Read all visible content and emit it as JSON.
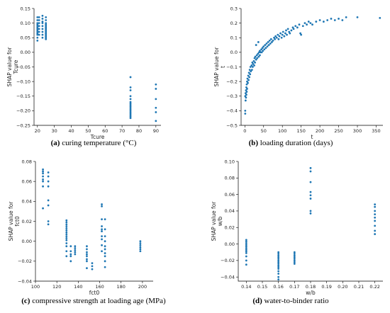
{
  "colors": {
    "point": "#1f77b4"
  },
  "chart_data": [
    {
      "id": "a",
      "type": "scatter",
      "caption_letter": "(a)",
      "caption_text": " curing temperature (°C)",
      "xlabel": "Tcure",
      "ylabel_lines": [
        "SHAP value for",
        "Tcure"
      ],
      "xlim": [
        18,
        93
      ],
      "ylim": [
        -0.25,
        0.15
      ],
      "xticks": [
        20,
        30,
        40,
        50,
        60,
        70,
        80,
        90
      ],
      "yticks": [
        -0.25,
        -0.2,
        -0.15,
        -0.1,
        -0.05,
        0.0,
        0.05,
        0.1,
        0.15
      ],
      "ytick_labels": [
        "−0.25",
        "−0.20",
        "−0.15",
        "−0.10",
        "−0.05",
        "0.00",
        "0.05",
        "0.10",
        "0.15"
      ],
      "xtick_labels": [
        "20",
        "30",
        "40",
        "50",
        "60",
        "70",
        "80",
        "90"
      ],
      "points": [
        [
          20,
          0.12
        ],
        [
          20,
          0.11
        ],
        [
          20,
          0.1
        ],
        [
          20,
          0.095
        ],
        [
          20,
          0.09
        ],
        [
          20,
          0.085
        ],
        [
          20,
          0.08
        ],
        [
          20,
          0.075
        ],
        [
          20,
          0.07
        ],
        [
          20,
          0.065
        ],
        [
          20,
          0.06
        ],
        [
          20,
          0.05
        ],
        [
          20,
          0.04
        ],
        [
          21,
          0.12
        ],
        [
          21,
          0.11
        ],
        [
          21,
          0.1
        ],
        [
          21,
          0.09
        ],
        [
          21,
          0.08
        ],
        [
          21,
          0.07
        ],
        [
          21,
          0.06
        ],
        [
          23,
          0.125
        ],
        [
          23,
          0.115
        ],
        [
          23,
          0.105
        ],
        [
          23,
          0.1
        ],
        [
          23,
          0.09
        ],
        [
          23,
          0.08
        ],
        [
          23,
          0.07
        ],
        [
          23,
          0.06
        ],
        [
          23,
          0.05
        ],
        [
          25,
          0.12
        ],
        [
          25,
          0.11
        ],
        [
          25,
          0.1
        ],
        [
          25,
          0.095
        ],
        [
          25,
          0.09
        ],
        [
          25,
          0.085
        ],
        [
          25,
          0.08
        ],
        [
          25,
          0.075
        ],
        [
          25,
          0.07
        ],
        [
          25,
          0.065
        ],
        [
          25,
          0.06
        ],
        [
          25,
          0.055
        ],
        [
          25,
          0.05
        ],
        [
          25,
          0.045
        ],
        [
          75,
          -0.085
        ],
        [
          75,
          -0.12
        ],
        [
          75,
          -0.13
        ],
        [
          75,
          -0.15
        ],
        [
          75,
          -0.16
        ],
        [
          75,
          -0.17
        ],
        [
          75,
          -0.175
        ],
        [
          75,
          -0.18
        ],
        [
          75,
          -0.185
        ],
        [
          75,
          -0.19
        ],
        [
          75,
          -0.195
        ],
        [
          75,
          -0.2
        ],
        [
          75,
          -0.205
        ],
        [
          75,
          -0.21
        ],
        [
          75,
          -0.215
        ],
        [
          75,
          -0.22
        ],
        [
          75,
          -0.225
        ],
        [
          90,
          -0.11
        ],
        [
          90,
          -0.125
        ],
        [
          90,
          -0.16
        ],
        [
          90,
          -0.19
        ],
        [
          90,
          -0.205
        ],
        [
          90,
          -0.235
        ]
      ]
    },
    {
      "id": "b",
      "type": "scatter",
      "caption_letter": "(b)",
      "caption_text": " loading duration (days)",
      "xlabel": "t",
      "ylabel_lines": [
        "SHAP value for",
        "t"
      ],
      "xlim": [
        -10,
        368
      ],
      "ylim": [
        -0.5,
        0.3
      ],
      "xticks": [
        0,
        50,
        100,
        150,
        200,
        250,
        300,
        350
      ],
      "xtick_labels": [
        "0",
        "50",
        "100",
        "150",
        "200",
        "250",
        "300",
        "350"
      ],
      "yticks": [
        -0.5,
        -0.4,
        -0.3,
        -0.2,
        -0.1,
        0.0,
        0.1,
        0.2,
        0.3
      ],
      "ytick_labels": [
        "−0.5",
        "−0.4",
        "−0.3",
        "−0.2",
        "−0.1",
        "0.0",
        "0.1",
        "0.2",
        "0.3"
      ],
      "points": [
        [
          1,
          -0.42
        ],
        [
          1,
          -0.4
        ],
        [
          1,
          -0.3
        ],
        [
          2,
          -0.28
        ],
        [
          2,
          -0.33
        ],
        [
          3,
          -0.26
        ],
        [
          3,
          -0.31
        ],
        [
          4,
          -0.24
        ],
        [
          4,
          -0.29
        ],
        [
          5,
          -0.22
        ],
        [
          5,
          -0.27
        ],
        [
          6,
          -0.2
        ],
        [
          6,
          -0.25
        ],
        [
          7,
          -0.18
        ],
        [
          8,
          -0.21
        ],
        [
          9,
          -0.16
        ],
        [
          10,
          -0.19
        ],
        [
          11,
          -0.14
        ],
        [
          12,
          -0.17
        ],
        [
          13,
          -0.12
        ],
        [
          14,
          -0.15
        ],
        [
          15,
          -0.1
        ],
        [
          16,
          -0.13
        ],
        [
          18,
          -0.09
        ],
        [
          19,
          -0.12
        ],
        [
          20,
          -0.07
        ],
        [
          21,
          -0.1
        ],
        [
          22,
          -0.08
        ],
        [
          24,
          -0.06
        ],
        [
          25,
          -0.09
        ],
        [
          26,
          -0.04
        ],
        [
          27,
          -0.07
        ],
        [
          28,
          -0.03
        ],
        [
          30,
          -0.05
        ],
        [
          30,
          0.05
        ],
        [
          32,
          -0.02
        ],
        [
          33,
          -0.04
        ],
        [
          35,
          -0.01
        ],
        [
          36,
          0.07
        ],
        [
          37,
          -0.03
        ],
        [
          38,
          0.0
        ],
        [
          40,
          0.01
        ],
        [
          40,
          -0.02
        ],
        [
          42,
          0.0
        ],
        [
          44,
          0.02
        ],
        [
          45,
          0.0
        ],
        [
          47,
          0.03
        ],
        [
          48,
          0.01
        ],
        [
          50,
          0.04
        ],
        [
          52,
          0.02
        ],
        [
          54,
          0.05
        ],
        [
          56,
          0.03
        ],
        [
          58,
          0.06
        ],
        [
          60,
          0.04
        ],
        [
          62,
          0.07
        ],
        [
          64,
          0.05
        ],
        [
          66,
          0.08
        ],
        [
          68,
          0.06
        ],
        [
          70,
          0.09
        ],
        [
          72,
          0.07
        ],
        [
          75,
          0.08
        ],
        [
          78,
          0.1
        ],
        [
          80,
          0.09
        ],
        [
          82,
          0.11
        ],
        [
          85,
          0.1
        ],
        [
          88,
          0.12
        ],
        [
          90,
          0.09
        ],
        [
          92,
          0.11
        ],
        [
          95,
          0.13
        ],
        [
          98,
          0.1
        ],
        [
          100,
          0.12
        ],
        [
          102,
          0.14
        ],
        [
          105,
          0.11
        ],
        [
          108,
          0.13
        ],
        [
          110,
          0.15
        ],
        [
          112,
          0.12
        ],
        [
          115,
          0.16
        ],
        [
          118,
          0.14
        ],
        [
          120,
          0.13
        ],
        [
          124,
          0.15
        ],
        [
          128,
          0.17
        ],
        [
          130,
          0.16
        ],
        [
          135,
          0.18
        ],
        [
          140,
          0.17
        ],
        [
          145,
          0.19
        ],
        [
          148,
          0.13
        ],
        [
          150,
          0.12
        ],
        [
          155,
          0.18
        ],
        [
          160,
          0.2
        ],
        [
          165,
          0.19
        ],
        [
          170,
          0.21
        ],
        [
          175,
          0.2
        ],
        [
          180,
          0.19
        ],
        [
          190,
          0.21
        ],
        [
          200,
          0.22
        ],
        [
          210,
          0.21
        ],
        [
          220,
          0.22
        ],
        [
          230,
          0.23
        ],
        [
          240,
          0.22
        ],
        [
          250,
          0.23
        ],
        [
          260,
          0.22
        ],
        [
          270,
          0.24
        ],
        [
          300,
          0.24
        ],
        [
          360,
          0.235
        ]
      ]
    },
    {
      "id": "c",
      "type": "scatter",
      "caption_letter": "(c)",
      "caption_text": " compressive strength at loading age (MPa)",
      "xlabel": "fct0",
      "ylabel_lines": [
        "SHAP value for",
        "fct0"
      ],
      "xlim": [
        100,
        210
      ],
      "ylim": [
        -0.04,
        0.08
      ],
      "xticks": [
        100,
        120,
        140,
        160,
        180,
        200
      ],
      "xtick_labels": [
        "100",
        "120",
        "140",
        "160",
        "180",
        "200"
      ],
      "yticks": [
        -0.04,
        -0.02,
        0.0,
        0.02,
        0.04,
        0.06,
        0.08
      ],
      "ytick_labels": [
        "−0.04",
        "−0.02",
        "0.00",
        "0.02",
        "0.04",
        "0.06",
        "0.08"
      ],
      "points": [
        [
          107,
          0.072
        ],
        [
          107,
          0.07
        ],
        [
          107,
          0.068
        ],
        [
          107,
          0.065
        ],
        [
          107,
          0.062
        ],
        [
          107,
          0.06
        ],
        [
          107,
          0.055
        ],
        [
          107,
          0.033
        ],
        [
          112,
          0.069
        ],
        [
          112,
          0.065
        ],
        [
          112,
          0.06
        ],
        [
          112,
          0.055
        ],
        [
          112,
          0.041
        ],
        [
          112,
          0.036
        ],
        [
          112,
          0.02
        ],
        [
          112,
          0.017
        ],
        [
          129,
          0.021
        ],
        [
          129,
          0.019
        ],
        [
          129,
          0.017
        ],
        [
          129,
          0.015
        ],
        [
          129,
          0.013
        ],
        [
          129,
          0.011
        ],
        [
          129,
          0.009
        ],
        [
          129,
          0.007
        ],
        [
          129,
          0.005
        ],
        [
          129,
          0.003
        ],
        [
          129,
          0.001
        ],
        [
          129,
          -0.002
        ],
        [
          129,
          -0.005
        ],
        [
          129,
          -0.01
        ],
        [
          129,
          -0.015
        ],
        [
          133,
          -0.005
        ],
        [
          133,
          -0.01
        ],
        [
          133,
          -0.013
        ],
        [
          133,
          -0.015
        ],
        [
          133,
          -0.02
        ],
        [
          137,
          -0.005
        ],
        [
          137,
          -0.007
        ],
        [
          137,
          -0.009
        ],
        [
          137,
          -0.011
        ],
        [
          137,
          -0.013
        ],
        [
          148,
          -0.005
        ],
        [
          148,
          -0.008
        ],
        [
          148,
          -0.011
        ],
        [
          148,
          -0.013
        ],
        [
          148,
          -0.015
        ],
        [
          148,
          -0.018
        ],
        [
          148,
          -0.02
        ],
        [
          148,
          -0.027
        ],
        [
          153,
          -0.022
        ],
        [
          153,
          -0.025
        ],
        [
          153,
          -0.028
        ],
        [
          162,
          0.037
        ],
        [
          162,
          0.035
        ],
        [
          162,
          0.022
        ],
        [
          162,
          0.015
        ],
        [
          162,
          0.012
        ],
        [
          162,
          0.01
        ],
        [
          162,
          0.005
        ],
        [
          162,
          0.002
        ],
        [
          162,
          -0.004
        ],
        [
          162,
          -0.01
        ],
        [
          165,
          0.022
        ],
        [
          165,
          0.012
        ],
        [
          165,
          0.005
        ],
        [
          165,
          0.0
        ],
        [
          165,
          -0.005
        ],
        [
          165,
          -0.008
        ],
        [
          165,
          -0.012
        ],
        [
          165,
          -0.015
        ],
        [
          165,
          -0.02
        ],
        [
          165,
          -0.026
        ],
        [
          198,
          0.0
        ],
        [
          198,
          -0.002
        ],
        [
          198,
          -0.004
        ],
        [
          198,
          -0.006
        ],
        [
          198,
          -0.008
        ],
        [
          198,
          -0.01
        ]
      ]
    },
    {
      "id": "d",
      "type": "scatter",
      "caption_letter": "(d)",
      "caption_text": " water-to-binder ratio",
      "xlabel": "w/b",
      "ylabel_lines": [
        "SHAP value for",
        "w/b"
      ],
      "xlim": [
        0.135,
        0.225
      ],
      "ylim": [
        -0.045,
        0.1
      ],
      "xticks": [
        0.14,
        0.15,
        0.16,
        0.17,
        0.18,
        0.19,
        0.2,
        0.21,
        0.22
      ],
      "xtick_labels": [
        "0.14",
        "0.15",
        "0.16",
        "0.17",
        "0.18",
        "0.19",
        "0.20",
        "0.21",
        "0.22"
      ],
      "yticks": [
        -0.04,
        -0.02,
        0.0,
        0.02,
        0.04,
        0.06,
        0.08,
        0.1
      ],
      "ytick_labels": [
        "−0.04",
        "−0.02",
        "0.00",
        "0.02",
        "0.04",
        "0.06",
        "0.08",
        "0.10"
      ],
      "points": [
        [
          0.14,
          0.005
        ],
        [
          0.14,
          0.003
        ],
        [
          0.14,
          0.001
        ],
        [
          0.14,
          -0.001
        ],
        [
          0.14,
          -0.003
        ],
        [
          0.14,
          -0.005
        ],
        [
          0.14,
          -0.007
        ],
        [
          0.14,
          -0.009
        ],
        [
          0.14,
          -0.011
        ],
        [
          0.14,
          -0.015
        ],
        [
          0.14,
          -0.02
        ],
        [
          0.14,
          -0.025
        ],
        [
          0.16,
          -0.01
        ],
        [
          0.16,
          -0.012
        ],
        [
          0.16,
          -0.014
        ],
        [
          0.16,
          -0.016
        ],
        [
          0.16,
          -0.018
        ],
        [
          0.16,
          -0.02
        ],
        [
          0.16,
          -0.022
        ],
        [
          0.16,
          -0.024
        ],
        [
          0.16,
          -0.026
        ],
        [
          0.16,
          -0.028
        ],
        [
          0.16,
          -0.03
        ],
        [
          0.16,
          -0.033
        ],
        [
          0.16,
          -0.036
        ],
        [
          0.16,
          -0.04
        ],
        [
          0.16,
          -0.043
        ],
        [
          0.17,
          -0.01
        ],
        [
          0.17,
          -0.012
        ],
        [
          0.17,
          -0.014
        ],
        [
          0.17,
          -0.016
        ],
        [
          0.17,
          -0.018
        ],
        [
          0.17,
          -0.02
        ],
        [
          0.17,
          -0.022
        ],
        [
          0.17,
          -0.024
        ],
        [
          0.18,
          0.092
        ],
        [
          0.18,
          0.088
        ],
        [
          0.18,
          0.075
        ],
        [
          0.18,
          0.063
        ],
        [
          0.18,
          0.059
        ],
        [
          0.18,
          0.055
        ],
        [
          0.18,
          0.04
        ],
        [
          0.18,
          0.037
        ],
        [
          0.22,
          0.048
        ],
        [
          0.22,
          0.045
        ],
        [
          0.22,
          0.04
        ],
        [
          0.22,
          0.036
        ],
        [
          0.22,
          0.032
        ],
        [
          0.22,
          0.028
        ],
        [
          0.22,
          0.022
        ],
        [
          0.22,
          0.016
        ],
        [
          0.22,
          0.012
        ]
      ]
    }
  ]
}
